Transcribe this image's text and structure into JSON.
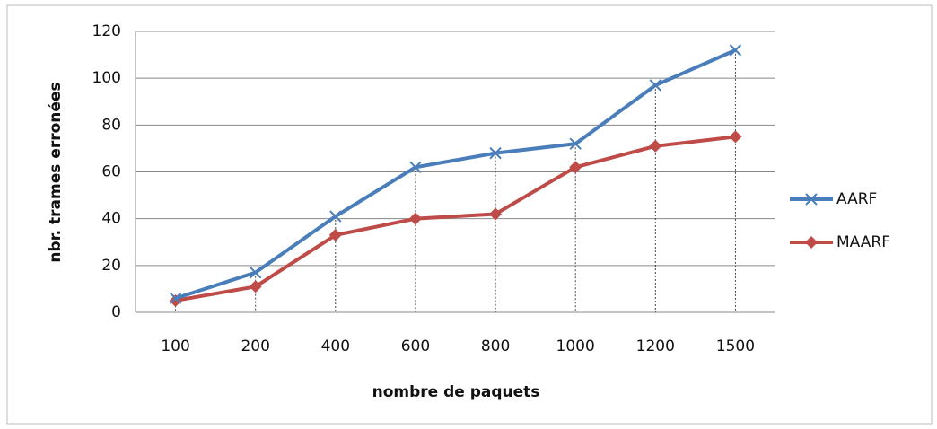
{
  "chart_data": {
    "type": "line",
    "x_label": "nombre de paquets",
    "y_label": "nbr. trames erronées",
    "categories": [
      "100",
      "200",
      "400",
      "600",
      "800",
      "1000",
      "1200",
      "1500"
    ],
    "series": [
      {
        "name": "AARF",
        "color": "#4a7ebb",
        "marker": "x",
        "values": [
          6,
          17,
          41,
          62,
          68,
          72,
          97,
          112
        ]
      },
      {
        "name": "MAARF",
        "color": "#be4b48",
        "marker": "diamond",
        "values": [
          5,
          11,
          33,
          40,
          42,
          62,
          71,
          75
        ]
      }
    ],
    "ylim": [
      0,
      120
    ],
    "yticks": [
      0,
      20,
      40,
      60,
      80,
      100,
      120
    ],
    "grid": true,
    "drop_lines": true,
    "legend": "right"
  }
}
